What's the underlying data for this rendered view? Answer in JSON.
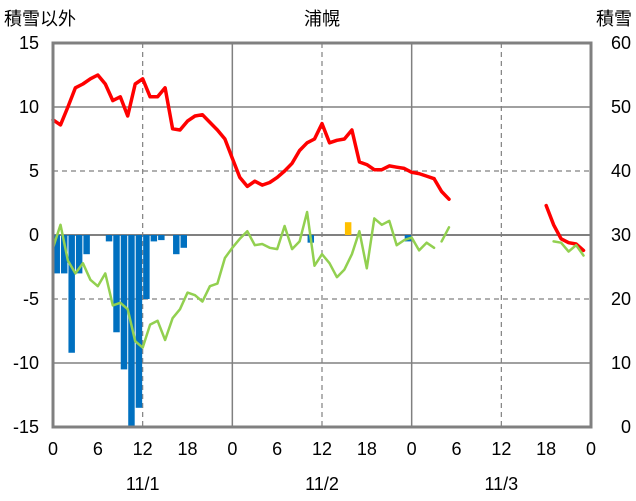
{
  "header": {
    "left_axis_title": "積雪以外",
    "title": "浦幌",
    "right_axis_title": "積雪"
  },
  "chart_data": {
    "type": "line",
    "title": "浦幌",
    "x_unit": "hour",
    "x_range": [
      0,
      72
    ],
    "x_tick_labels": [
      "0",
      "6",
      "12",
      "18",
      "0",
      "6",
      "12",
      "18",
      "0",
      "6",
      "12",
      "18",
      "0"
    ],
    "date_labels": [
      "11/1",
      "11/2",
      "11/3"
    ],
    "y_left": {
      "label": "積雪以外",
      "lim": [
        -15,
        15
      ],
      "ticks": [
        15,
        10,
        5,
        0,
        -5,
        -10,
        -15
      ]
    },
    "y_right": {
      "label": "積雪",
      "lim": [
        0,
        60
      ],
      "ticks": [
        60,
        50,
        40,
        30,
        20,
        10,
        0
      ]
    },
    "grid": true,
    "colors": {
      "temperature": "#ff0000",
      "wind": "#92d050",
      "precip_snow": "#0070c0",
      "precip_other": "#ffc000",
      "snow_depth": "#7030a0",
      "grid": "#808080",
      "frame": "#808080"
    },
    "series": [
      {
        "name": "",
        "key": "temperature",
        "axis": "left",
        "segments": [
          {
            "x": [
              0,
              1,
              2,
              3,
              4,
              5,
              6,
              7,
              8,
              9,
              10,
              11,
              12,
              13,
              14,
              15,
              16,
              17,
              18,
              19,
              20,
              21,
              22,
              23,
              24,
              25,
              26,
              27,
              28,
              29,
              30,
              31,
              32,
              33,
              34,
              35,
              36,
              37,
              38,
              39,
              40,
              41,
              42,
              43,
              44,
              45,
              46,
              47,
              48,
              49,
              50,
              51
            ],
            "y": [
              9.0,
              8.6,
              10.0,
              11.5,
              11.8,
              12.2,
              12.5,
              11.8,
              10.5,
              10.8,
              9.3,
              11.8,
              12.2,
              10.8,
              10.8,
              11.5,
              8.3,
              8.2,
              8.9,
              9.3,
              9.4,
              8.8,
              8.2,
              7.5,
              6.0,
              4.5,
              3.8,
              4.2,
              3.9,
              4.1,
              4.5,
              5.0,
              5.6,
              6.6,
              7.2,
              7.5,
              8.7,
              7.2,
              7.4,
              7.5,
              8.2,
              5.7,
              5.5,
              5.1,
              5.1,
              5.4,
              5.3,
              5.2,
              4.9,
              4.8,
              4.6,
              4.4
            ]
          },
          {
            "x": [
              51,
              52,
              53
            ],
            "y": [
              4.4,
              3.4,
              2.8
            ]
          },
          {
            "x": [
              66,
              67,
              68,
              69,
              70,
              71
            ],
            "y": [
              2.3,
              0.8,
              -0.3,
              -0.6,
              -0.7,
              -1.2
            ]
          }
        ]
      },
      {
        "name": "",
        "key": "wind",
        "axis": "left",
        "segments": [
          {
            "x": [
              0,
              1,
              2,
              3,
              4,
              5,
              6,
              7,
              8,
              9,
              10,
              11,
              12,
              13,
              14,
              15,
              16,
              17,
              18,
              19,
              20,
              21,
              22,
              23,
              24,
              25,
              26,
              27,
              28,
              29,
              30,
              31,
              32,
              33,
              34,
              35,
              36,
              37,
              38,
              39,
              40,
              41,
              42,
              43,
              44,
              45,
              46,
              47,
              48,
              49,
              50,
              51
            ],
            "y": [
              -1.0,
              0.8,
              -2.0,
              -3.0,
              -2.2,
              -3.5,
              -4.0,
              -3.0,
              -5.5,
              -5.3,
              -5.8,
              -8.3,
              -8.8,
              -7.0,
              -6.7,
              -8.2,
              -6.5,
              -5.8,
              -4.5,
              -4.7,
              -5.2,
              -4.0,
              -3.8,
              -1.8,
              -1.0,
              -0.3,
              0.3,
              -0.8,
              -0.7,
              -1.0,
              -1.1,
              0.7,
              -1.1,
              -0.5,
              1.8,
              -2.4,
              -1.5,
              -2.2,
              -3.3,
              -2.7,
              -1.5,
              0.3,
              -2.6,
              1.3,
              0.8,
              1.1,
              -0.8,
              -0.4,
              -0.2,
              -1.2,
              -0.6,
              -1.0
            ]
          },
          {
            "x": [
              52,
              53
            ],
            "y": [
              -0.5,
              0.6
            ]
          },
          {
            "x": [
              67,
              68,
              69,
              70,
              71
            ],
            "y": [
              -0.5,
              -0.6,
              -1.3,
              -0.8,
              -1.6
            ]
          }
        ]
      },
      {
        "name": "",
        "key": "precip_snow",
        "axis": "left",
        "type": "bar",
        "x": [
          0,
          1,
          2,
          3,
          4,
          7,
          8,
          9,
          10,
          11,
          12,
          13,
          14,
          16,
          17,
          34,
          47
        ],
        "y": [
          -3.0,
          -3.0,
          -9.2,
          -3.0,
          -1.5,
          -0.5,
          -7.6,
          -10.5,
          -15.0,
          -13.5,
          -5.0,
          -0.5,
          -0.4,
          -1.5,
          -1.0,
          -0.6,
          -0.5
        ]
      },
      {
        "name": "",
        "key": "precip_other",
        "axis": "left",
        "type": "bar",
        "x": [
          39
        ],
        "y": [
          1.0
        ]
      },
      {
        "name": "",
        "key": "snow_depth",
        "axis": "right",
        "segments": [
          {
            "x": [
              0,
              54
            ],
            "y": [
              0,
              0
            ]
          },
          {
            "x": [
              66,
              71
            ],
            "y": [
              0,
              0
            ]
          }
        ]
      }
    ]
  }
}
